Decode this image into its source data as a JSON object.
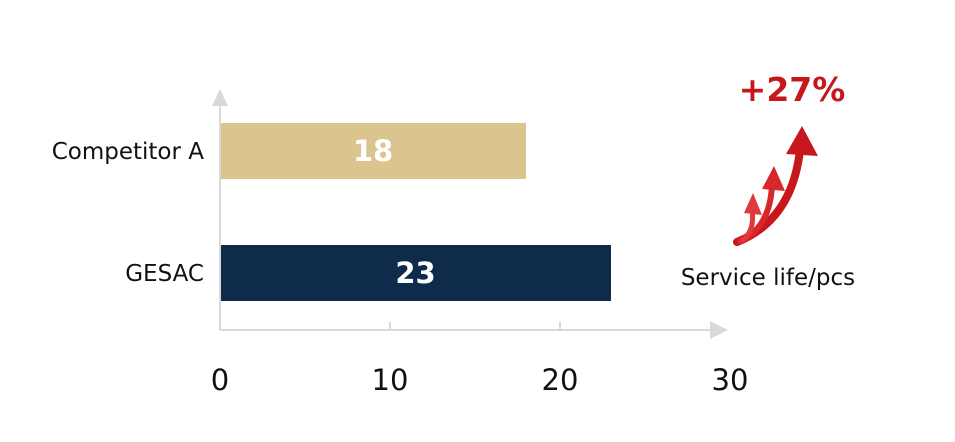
{
  "chart_data": {
    "type": "bar",
    "orientation": "horizontal",
    "categories": [
      "Competitor A",
      "GESAC"
    ],
    "values": [
      18,
      23
    ],
    "colors": [
      "#dcc48e",
      "#0e2b4c"
    ],
    "xlim": [
      0,
      30
    ],
    "xticks": [
      "0",
      "10",
      "20",
      "30"
    ],
    "xlabel": "Service life/pcs",
    "annotation": "+27%",
    "annotation_color": "#c8161d",
    "annotation_icon": "rising-arrows-icon",
    "grid": false
  }
}
